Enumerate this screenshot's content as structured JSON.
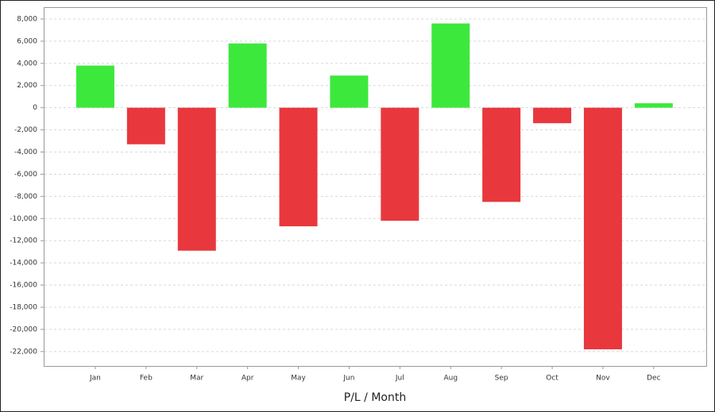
{
  "chart_data": {
    "type": "bar",
    "x_label": "P/L / Month",
    "categories": [
      "Jan",
      "Feb",
      "Mar",
      "Apr",
      "May",
      "Jun",
      "Jul",
      "Aug",
      "Sep",
      "Oct",
      "Nov",
      "Dec"
    ],
    "values": [
      3800,
      -3300,
      -12900,
      5800,
      -10700,
      2900,
      -10200,
      7600,
      -8500,
      -1400,
      -21800,
      400
    ],
    "positive_color": "#3de83d",
    "negative_color": "#e8383d",
    "ylim": [
      -23300,
      9000
    ],
    "yticks": [
      {
        "value": 8000,
        "label": "8,000"
      },
      {
        "value": 6000,
        "label": "6,000"
      },
      {
        "value": 4000,
        "label": "4,000"
      },
      {
        "value": 2000,
        "label": "2,000"
      },
      0,
      {
        "value": -2000,
        "label": "-2,000"
      },
      {
        "value": -4000,
        "label": "-4,000"
      },
      {
        "value": -6000,
        "label": "-6,000"
      },
      {
        "value": -8000,
        "label": "-8,000"
      },
      {
        "value": -10000,
        "label": "-10,000"
      },
      {
        "value": -12000,
        "label": "-12,000"
      },
      {
        "value": -14000,
        "label": "-14,000"
      },
      {
        "value": -16000,
        "label": "-16,000"
      },
      {
        "value": -18000,
        "label": "-18,000"
      },
      {
        "value": -20000,
        "label": "-20,000"
      },
      {
        "value": -22000,
        "label": "-22,000"
      }
    ],
    "grid": true
  }
}
